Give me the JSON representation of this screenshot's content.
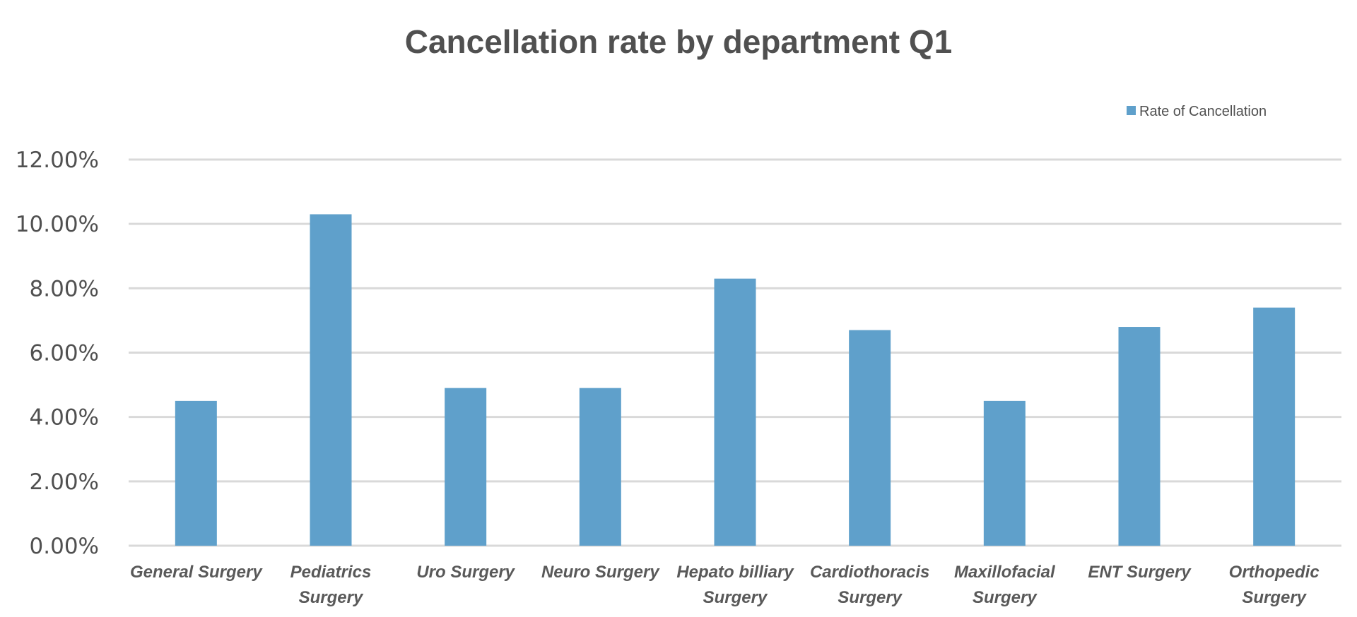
{
  "chart_data": {
    "type": "bar",
    "title": "Cancellation rate by department Q1",
    "xlabel": "",
    "ylabel": "",
    "categories": [
      "General Surgery",
      "Pediatrics Surgery",
      "Uro Surgery",
      "Neuro Surgery",
      "Hepato billiary Surgery",
      "Cardiothoracis Surgery",
      "Maxillofacial Surgery",
      "ENT Surgery",
      "Orthopedic Surgery"
    ],
    "category_lines": [
      [
        "General Surgery"
      ],
      [
        "Pediatrics",
        "Surgery"
      ],
      [
        "Uro Surgery"
      ],
      [
        "Neuro Surgery"
      ],
      [
        "Hepato billiary",
        "Surgery"
      ],
      [
        "Cardiothoracis",
        "Surgery"
      ],
      [
        "Maxillofacial",
        "Surgery"
      ],
      [
        "ENT Surgery"
      ],
      [
        "Orthopedic",
        "Surgery"
      ]
    ],
    "series": [
      {
        "name": "Rate of Cancellation",
        "color": "#5fa0cb",
        "values": [
          4.5,
          10.3,
          4.9,
          4.9,
          8.3,
          6.7,
          4.5,
          6.8,
          7.4
        ]
      }
    ],
    "ylim": [
      0,
      12
    ],
    "yticks": [
      0,
      2,
      4,
      6,
      8,
      10,
      12
    ],
    "ytick_labels": [
      "0.00%",
      "2.00%",
      "4.00%",
      "6.00%",
      "8.00%",
      "10.00%",
      "12.00%"
    ],
    "grid": true,
    "grid_color": "#d9d9d9",
    "legend_position": "top-right"
  }
}
